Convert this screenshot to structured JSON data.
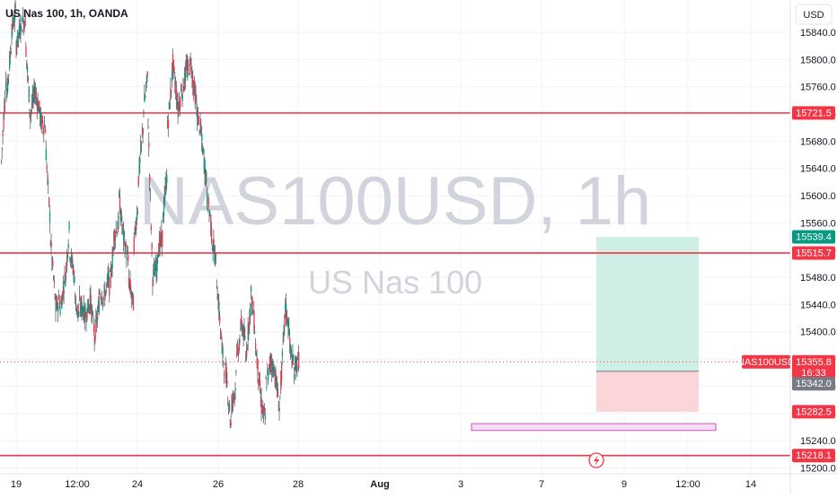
{
  "header": {
    "symbol_label": "US Nas 100, 1h, OANDA",
    "currency_button": "USD"
  },
  "watermark": {
    "ticker_line": "NAS100USD, 1h",
    "name_line": "US Nas 100"
  },
  "colors": {
    "up": "#089981",
    "down": "#f23645",
    "wick": "#5d606b",
    "level_line": "#f23645",
    "grid": "#f0f3fa",
    "watermark": "#d1d4dc",
    "target_zone": "#cfeee6",
    "stop_zone": "#fbd5d8",
    "support_box_fill": "#f8ddf4",
    "support_box_border": "#c855c2"
  },
  "chart_data": {
    "type": "candlestick",
    "symbol": "NAS100USD",
    "timeframe": "1h",
    "ylim": [
      15200,
      15880
    ],
    "y_ticks": [
      "15840.0",
      "15800.0",
      "15760.0",
      "15720.0",
      "15680.0",
      "15640.0",
      "15600.0",
      "15560.0",
      "15520.0",
      "15480.0",
      "15440.0",
      "15400.0",
      "15360.0",
      "15320.0",
      "15280.0",
      "15240.0",
      "15200.0"
    ],
    "x_ticks": [
      "19",
      "12:00",
      "24",
      "26",
      "28",
      "Aug",
      "3",
      "7",
      "9",
      "12:00",
      "14"
    ],
    "horizontal_levels": [
      15721.5,
      15515.7,
      15218.1
    ],
    "current_price": 15355.8,
    "countdown": "16:33",
    "price_labels": [
      {
        "text": "15721.5",
        "value": 15721.5,
        "kind": "level"
      },
      {
        "text": "15539.4",
        "value": 15539.4,
        "kind": "target"
      },
      {
        "text": "15515.7",
        "value": 15515.7,
        "kind": "level"
      },
      {
        "text": "NAS100USD",
        "value": 15355.8,
        "kind": "ticker"
      },
      {
        "text": "15355.8",
        "value": 15355.8,
        "kind": "current"
      },
      {
        "text": "15342.0",
        "value": 15342.0,
        "kind": "entry"
      },
      {
        "text": "15282.5",
        "value": 15282.5,
        "kind": "stop"
      },
      {
        "text": "15218.1",
        "value": 15218.1,
        "kind": "level"
      }
    ],
    "long_position": {
      "entry": 15342.0,
      "target": 15539.4,
      "stop": 15282.5
    },
    "support_zone": {
      "top": 15265,
      "bottom": 15255
    },
    "price_path": [
      [
        15650,
        15780
      ],
      [
        15740,
        15820
      ],
      [
        15840,
        15870
      ],
      [
        15820,
        15850
      ],
      [
        15850,
        15860
      ],
      [
        15820,
        15710
      ],
      [
        15720,
        15760
      ],
      [
        15750,
        15720
      ],
      [
        15710,
        15700
      ],
      [
        15680,
        15560
      ],
      [
        15540,
        15450
      ],
      [
        15430,
        15450
      ],
      [
        15430,
        15480
      ],
      [
        15470,
        15560
      ],
      [
        15520,
        15480
      ],
      [
        15450,
        15420
      ],
      [
        15440,
        15430
      ],
      [
        15420,
        15440
      ],
      [
        15460,
        15400
      ],
      [
        15390,
        15440
      ],
      [
        15460,
        15450
      ],
      [
        15450,
        15480
      ],
      [
        15460,
        15520
      ],
      [
        15540,
        15560
      ],
      [
        15600,
        15540
      ],
      [
        15540,
        15500
      ],
      [
        15480,
        15440
      ],
      [
        15520,
        15590
      ],
      [
        15620,
        15700
      ],
      [
        15720,
        15780
      ],
      [
        15720,
        15470
      ],
      [
        15480,
        15500
      ],
      [
        15520,
        15540
      ],
      [
        15560,
        15640
      ],
      [
        15700,
        15780
      ],
      [
        15800,
        15740
      ],
      [
        15720,
        15760
      ],
      [
        15750,
        15790
      ],
      [
        15780,
        15800
      ],
      [
        15780,
        15730
      ],
      [
        15720,
        15690
      ],
      [
        15680,
        15620
      ],
      [
        15600,
        15560
      ],
      [
        15540,
        15500
      ],
      [
        15480,
        15390
      ],
      [
        15380,
        15330
      ],
      [
        15340,
        15260
      ],
      [
        15290,
        15320
      ],
      [
        15350,
        15400
      ],
      [
        15420,
        15380
      ],
      [
        15360,
        15440
      ],
      [
        15460,
        15400
      ],
      [
        15380,
        15310
      ],
      [
        15300,
        15270
      ],
      [
        15320,
        15350
      ],
      [
        15360,
        15340
      ],
      [
        15340,
        15280
      ],
      [
        15300,
        15420
      ],
      [
        15440,
        15400
      ],
      [
        15380,
        15340
      ],
      [
        15350,
        15360
      ]
    ]
  }
}
